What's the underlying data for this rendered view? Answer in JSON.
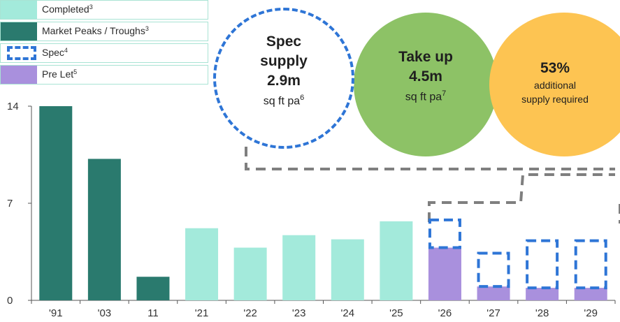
{
  "chart_data": {
    "type": "bar",
    "categories": [
      "'91",
      "'03",
      "11",
      "'21",
      "'22",
      "'23",
      "'24",
      "'25",
      "'26",
      "'27",
      "'28",
      "'29"
    ],
    "series": [
      {
        "name": "Market Peaks / Troughs",
        "values": [
          14.0,
          10.2,
          1.7,
          null,
          null,
          null,
          null,
          null,
          null,
          null,
          null,
          null
        ],
        "color": "#2a7a6e"
      },
      {
        "name": "Completed",
        "values": [
          null,
          null,
          null,
          5.2,
          3.8,
          4.7,
          4.4,
          5.7,
          null,
          null,
          null,
          null
        ],
        "color": "#a3eadb"
      },
      {
        "name": "Pre Let",
        "values": [
          null,
          null,
          null,
          null,
          null,
          null,
          null,
          null,
          3.8,
          1.0,
          0.9,
          0.9
        ],
        "color": "#a990dd"
      },
      {
        "name": "Spec",
        "values": [
          null,
          null,
          null,
          null,
          null,
          null,
          null,
          null,
          2.0,
          2.4,
          3.4,
          3.4
        ],
        "style": "dashed-outline",
        "color": "#2e75d6"
      }
    ],
    "yticks": [
      "0",
      "7",
      "14"
    ],
    "ylim": [
      0,
      14
    ],
    "legend": [
      {
        "label": "Completed",
        "sup": "3"
      },
      {
        "label": "Market Peaks / Troughs",
        "sup": "3"
      },
      {
        "label": "Spec",
        "sup": "4"
      },
      {
        "label": "Pre Let",
        "sup": "5"
      }
    ]
  },
  "callouts": {
    "spec": {
      "line1": "Spec",
      "line2": "supply",
      "line3": "2.9m",
      "line4": "sq ft pa",
      "sup": "6",
      "border_color": "#2e75d6"
    },
    "takeup": {
      "line1": "Take up",
      "line2": "4.5m",
      "line3": "sq ft pa",
      "sup": "7",
      "color": "#8dc266"
    },
    "additional": {
      "line1": "53%",
      "line2": "additional",
      "line3": "supply required",
      "color": "#fdc452"
    }
  }
}
